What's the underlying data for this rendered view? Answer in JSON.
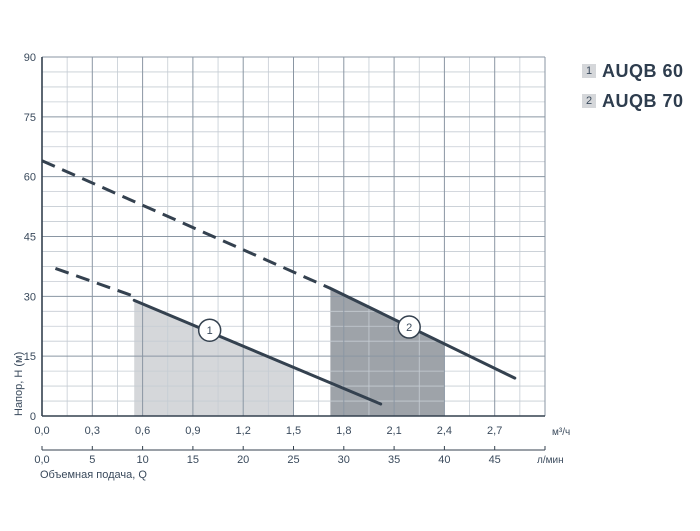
{
  "chart_data": {
    "type": "line",
    "ylabel": "Напор, H (м)",
    "xlabel": "Объемная подача, Q",
    "x_unit": "м³/ч",
    "x2_unit": "л/мин",
    "xlim": [
      0,
      3.0
    ],
    "ylim": [
      0,
      90
    ],
    "x_ticks": [
      "0,0",
      "0,3",
      "0,6",
      "0,9",
      "1,2",
      "1,5",
      "1,8",
      "2,1",
      "2,4",
      "2,7"
    ],
    "x2_ticks": [
      "0,0",
      "5",
      "10",
      "15",
      "20",
      "25",
      "30",
      "35",
      "40",
      "45"
    ],
    "y_ticks": [
      "0",
      "15",
      "30",
      "45",
      "60",
      "75",
      "90"
    ],
    "grid": true,
    "legend_position": "top-right",
    "series": [
      {
        "name": "AUQB 60",
        "marker": "1",
        "dashed": {
          "x": [
            0.08,
            0.55
          ],
          "y": [
            37,
            30
          ]
        },
        "solid": {
          "x": [
            0.55,
            2.02
          ],
          "y": [
            29,
            3
          ]
        },
        "working_range": {
          "x": [
            0.55,
            1.5
          ]
        },
        "label_at": {
          "x": 1.0,
          "y": 21.5
        },
        "color": "#34414f",
        "fill": "#d5d7da"
      },
      {
        "name": "AUQB 70",
        "marker": "2",
        "dashed": {
          "x": [
            0.0,
            1.72
          ],
          "y": [
            64,
            32
          ]
        },
        "solid": {
          "x": [
            1.72,
            2.82
          ],
          "y": [
            32,
            9.5
          ]
        },
        "working_range": {
          "x": [
            1.72,
            2.4
          ]
        },
        "label_at": {
          "x": 2.19,
          "y": 22.3
        },
        "color": "#34414f",
        "fill": "#9ea3a9"
      }
    ]
  },
  "legend": [
    {
      "index": "1",
      "label": "AUQB 60"
    },
    {
      "index": "2",
      "label": "AUQB 70"
    }
  ]
}
